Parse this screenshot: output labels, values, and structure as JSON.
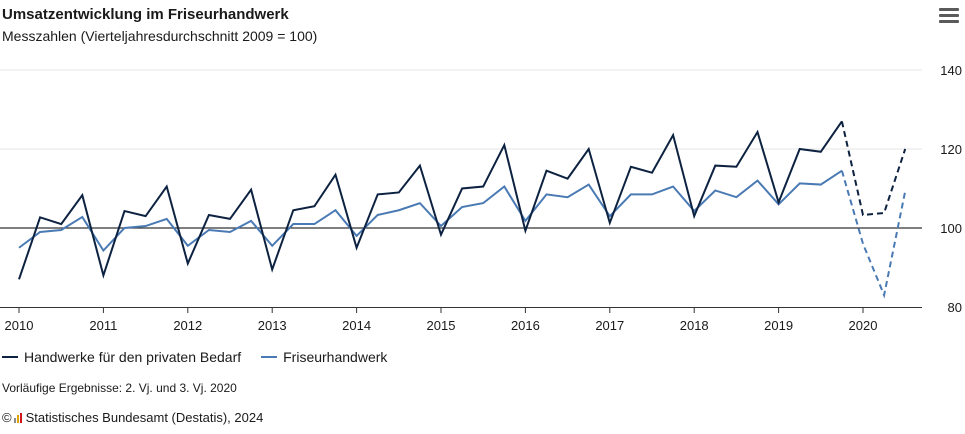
{
  "header": {
    "title": "Umsatzentwicklung im Friseurhandwerk",
    "subtitle": "Messzahlen (Vierteljahresdurchschnitt 2009 = 100)",
    "menu_icon": "hamburger-menu-icon"
  },
  "footnote": "Vorläufige Ergebnisse: 2. Vj. und 3. Vj. 2020",
  "source": {
    "copyright": "©",
    "text": "Statistisches Bundesamt (Destatis), 2024",
    "logo_colors": [
      "#8c8c8c",
      "#e0a500",
      "#d2141e"
    ]
  },
  "colors": {
    "series1": "#0d2240",
    "series2": "#4a7ab3",
    "grid": "#e4e4e4",
    "baseline": "#333333",
    "axis": "#333333"
  },
  "chart_data": {
    "type": "line",
    "title": "Umsatzentwicklung im Friseurhandwerk",
    "subtitle": "Messzahlen (Vierteljahresdurchschnitt 2009 = 100)",
    "x_quarters": [
      "2010 Q1",
      "2010 Q2",
      "2010 Q3",
      "2010 Q4",
      "2011 Q1",
      "2011 Q2",
      "2011 Q3",
      "2011 Q4",
      "2012 Q1",
      "2012 Q2",
      "2012 Q3",
      "2012 Q4",
      "2013 Q1",
      "2013 Q2",
      "2013 Q3",
      "2013 Q4",
      "2014 Q1",
      "2014 Q2",
      "2014 Q3",
      "2014 Q4",
      "2015 Q1",
      "2015 Q2",
      "2015 Q3",
      "2015 Q4",
      "2016 Q1",
      "2016 Q2",
      "2016 Q3",
      "2016 Q4",
      "2017 Q1",
      "2017 Q2",
      "2017 Q3",
      "2017 Q4",
      "2018 Q1",
      "2018 Q2",
      "2018 Q3",
      "2018 Q4",
      "2019 Q1",
      "2019 Q2",
      "2019 Q3",
      "2019 Q4",
      "2020 Q1",
      "2020 Q2",
      "2020 Q3"
    ],
    "xticks": [
      "2010",
      "2011",
      "2012",
      "2013",
      "2014",
      "2015",
      "2016",
      "2017",
      "2018",
      "2019",
      "2020"
    ],
    "ylim": [
      80,
      140
    ],
    "yticks": [
      80,
      100,
      120,
      140
    ],
    "reference_line": 100,
    "provisional_from_index": 40,
    "legend_position": "bottom",
    "grid": true,
    "series": [
      {
        "name": "Handwerke für den privaten Bedarf",
        "color": "#0d2240",
        "values": [
          87.0,
          102.7,
          101.0,
          108.3,
          88.0,
          104.3,
          103.0,
          110.5,
          91.0,
          103.3,
          102.3,
          109.7,
          89.5,
          104.5,
          105.5,
          113.5,
          95.0,
          108.5,
          109.0,
          115.8,
          98.3,
          110.0,
          110.5,
          121.0,
          99.3,
          114.5,
          112.5,
          120.0,
          101.3,
          115.5,
          114.0,
          123.5,
          103.0,
          115.8,
          115.5,
          124.3,
          106.5,
          120.0,
          119.3,
          127.0,
          103.3,
          103.8,
          120.0
        ]
      },
      {
        "name": "Friseurhandwerk",
        "color": "#4a7ab3",
        "values": [
          95.0,
          99.0,
          99.5,
          102.8,
          94.3,
          100.0,
          100.5,
          102.3,
          95.5,
          99.5,
          99.0,
          101.8,
          95.5,
          101.0,
          101.0,
          104.5,
          98.0,
          103.3,
          104.5,
          106.3,
          100.5,
          105.3,
          106.3,
          110.5,
          101.8,
          108.5,
          107.8,
          111.0,
          103.0,
          108.5,
          108.5,
          110.5,
          104.3,
          109.5,
          107.8,
          112.0,
          106.0,
          111.3,
          111.0,
          114.5,
          96.0,
          83.0,
          109.3
        ]
      }
    ]
  },
  "legend": {
    "items": [
      {
        "label": "Handwerke für den privaten Bedarf"
      },
      {
        "label": "Friseurhandwerk"
      }
    ]
  }
}
